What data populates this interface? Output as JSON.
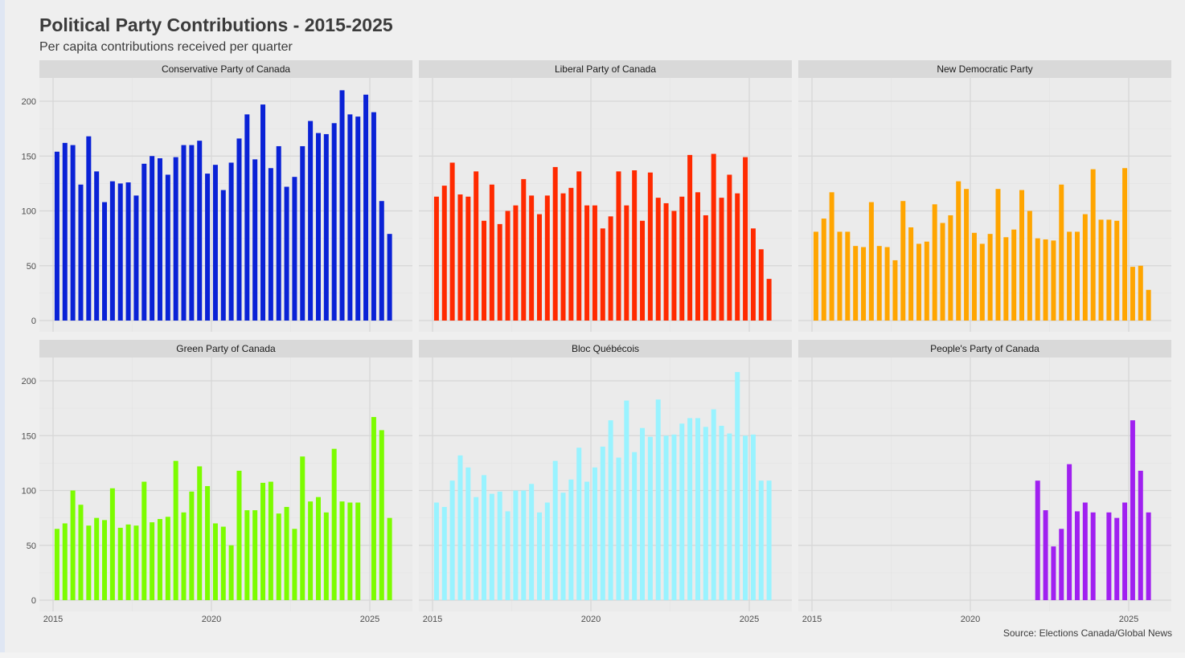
{
  "title": "Political Party Contributions - 2015-2025",
  "subtitle": "Per capita contributions received per quarter",
  "caption": "Source: Elections Canada/Global News",
  "chart_data": {
    "type": "bar",
    "layout": "facet 2x3",
    "x_label": "",
    "y_label": "",
    "x_ticks": [
      "2015",
      "2020",
      "2025"
    ],
    "y_ticks": [
      "0",
      "50",
      "100",
      "150",
      "200"
    ],
    "xlim": [
      2014.6,
      2026.4
    ],
    "ylim": [
      0,
      220
    ],
    "x_start": 2015.125,
    "x_step": 0.25,
    "panels": [
      {
        "name": "Conservative Party of Canada",
        "color": "#0a22d6",
        "start_index": 0,
        "values": [
          154,
          162,
          160,
          124,
          168,
          136,
          108,
          127,
          125,
          126,
          114,
          143,
          150,
          148,
          133,
          149,
          160,
          160,
          164,
          134,
          142,
          119,
          144,
          166,
          188,
          147,
          197,
          139,
          159,
          122,
          131,
          159,
          182,
          171,
          170,
          180,
          210,
          188,
          186,
          206,
          190,
          109,
          79
        ]
      },
      {
        "name": "Liberal Party of Canada",
        "color": "#ff2a00",
        "start_index": 0,
        "values": [
          113,
          123,
          144,
          115,
          113,
          136,
          91,
          124,
          88,
          100,
          105,
          129,
          114,
          97,
          114,
          140,
          116,
          121,
          136,
          105,
          105,
          84,
          95,
          136,
          105,
          137,
          91,
          135,
          112,
          107,
          100,
          113,
          151,
          117,
          96,
          152,
          112,
          133,
          116,
          149,
          84,
          65,
          38
        ]
      },
      {
        "name": "New Democratic Party",
        "color": "#ffa500",
        "start_index": 0,
        "values": [
          81,
          93,
          117,
          81,
          81,
          68,
          67,
          108,
          68,
          67,
          55,
          109,
          85,
          70,
          72,
          106,
          89,
          96,
          127,
          120,
          80,
          70,
          79,
          120,
          76,
          83,
          119,
          100,
          75,
          74,
          73,
          124,
          81,
          81,
          97,
          138,
          92,
          92,
          91,
          139,
          49,
          50,
          28
        ]
      },
      {
        "name": "Green Party of Canada",
        "color": "#7cfc00",
        "start_index": 0,
        "values": [
          65,
          70,
          100,
          87,
          68,
          75,
          73,
          102,
          66,
          69,
          68,
          108,
          71,
          74,
          76,
          127,
          80,
          99,
          122,
          104,
          70,
          67,
          50,
          118,
          82,
          82,
          107,
          108,
          79,
          85,
          65,
          131,
          90,
          94,
          80,
          138,
          90,
          89,
          89,
          0,
          167,
          155,
          75
        ]
      },
      {
        "name": "Bloc Québécois",
        "color": "#99f3ff",
        "start_index": 0,
        "values": [
          89,
          85,
          109,
          132,
          121,
          94,
          114,
          97,
          99,
          81,
          100,
          100,
          106,
          80,
          89,
          127,
          98,
          110,
          139,
          108,
          121,
          140,
          164,
          130,
          182,
          135,
          157,
          149,
          183,
          150,
          151,
          161,
          166,
          166,
          158,
          174,
          159,
          152,
          208,
          150,
          151,
          109,
          109
        ]
      },
      {
        "name": "People's Party of Canada",
        "color": "#a020f0",
        "start_index": 28,
        "values": [
          109,
          82,
          49,
          65,
          124,
          81,
          89,
          80,
          0,
          80,
          75,
          89,
          164,
          118,
          80
        ]
      }
    ]
  }
}
